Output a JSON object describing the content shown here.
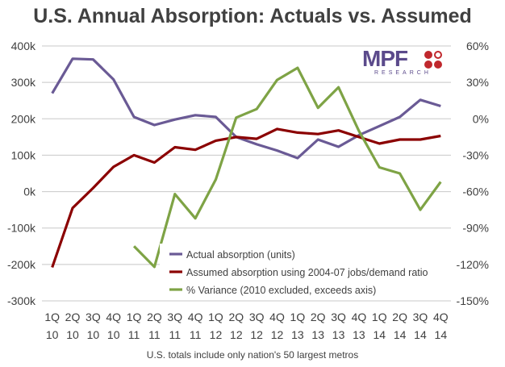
{
  "title": "U.S. Annual Absorption: Actuals vs. Assumed",
  "footnote": "U.S. totals include only nation's 50 largest metros",
  "logo": {
    "text": "MPF",
    "subtext": "RESEARCH",
    "color": "#5b4a8b",
    "dot_color": "#c0282d"
  },
  "chart_data": {
    "type": "line",
    "title": "U.S. Annual Absorption: Actuals vs. Assumed",
    "categories": [
      [
        "1Q",
        "10"
      ],
      [
        "2Q",
        "10"
      ],
      [
        "3Q",
        "10"
      ],
      [
        "4Q",
        "10"
      ],
      [
        "1Q",
        "11"
      ],
      [
        "2Q",
        "11"
      ],
      [
        "3Q",
        "11"
      ],
      [
        "4Q",
        "11"
      ],
      [
        "1Q",
        "12"
      ],
      [
        "2Q",
        "12"
      ],
      [
        "3Q",
        "12"
      ],
      [
        "4Q",
        "12"
      ],
      [
        "1Q",
        "13"
      ],
      [
        "2Q",
        "13"
      ],
      [
        "3Q",
        "13"
      ],
      [
        "4Q",
        "13"
      ],
      [
        "1Q",
        "14"
      ],
      [
        "2Q",
        "14"
      ],
      [
        "3Q",
        "14"
      ],
      [
        "4Q",
        "14"
      ]
    ],
    "y_left": {
      "ticks": [
        400000,
        300000,
        200000,
        100000,
        0,
        -100000,
        -200000,
        -300000
      ],
      "tick_labels": [
        "400k",
        "300k",
        "200k",
        "100k",
        "0k",
        "-100k",
        "-200k",
        "-300k"
      ],
      "ylim": [
        -300000,
        400000
      ]
    },
    "y_right": {
      "ticks": [
        60,
        30,
        0,
        -30,
        -60,
        -90,
        -120,
        -150
      ],
      "tick_labels": [
        "60%",
        "30%",
        "0%",
        "-30%",
        "-60%",
        "-90%",
        "-120%",
        "-150%"
      ],
      "ylim": [
        -150,
        60
      ]
    },
    "grid": true,
    "legend_position": "bottom-right",
    "series": [
      {
        "name": "Actual absorption (units)",
        "axis": "left",
        "color": "#6a5a95",
        "values": [
          270000,
          365000,
          363000,
          308000,
          205000,
          183000,
          198000,
          210000,
          205000,
          150000,
          130000,
          113000,
          92000,
          143000,
          123000,
          155000,
          180000,
          205000,
          252000,
          235000
        ]
      },
      {
        "name": "Assumed absorption using 2004-07 jobs/demand ratio",
        "axis": "left",
        "color": "#8b0000",
        "values": [
          -208000,
          -45000,
          10000,
          68000,
          100000,
          80000,
          122000,
          115000,
          140000,
          150000,
          145000,
          172000,
          162000,
          158000,
          168000,
          150000,
          132000,
          143000,
          143000,
          153000
        ]
      },
      {
        "name": "% Variance (2010 excluded, exceeds axis)",
        "axis": "right",
        "color": "#7ea345",
        "values": [
          null,
          null,
          null,
          null,
          -105,
          -122,
          -62,
          -82,
          -50,
          1,
          8,
          32,
          42,
          9,
          26,
          -10,
          -40,
          -45,
          -75,
          -52
        ]
      }
    ]
  }
}
